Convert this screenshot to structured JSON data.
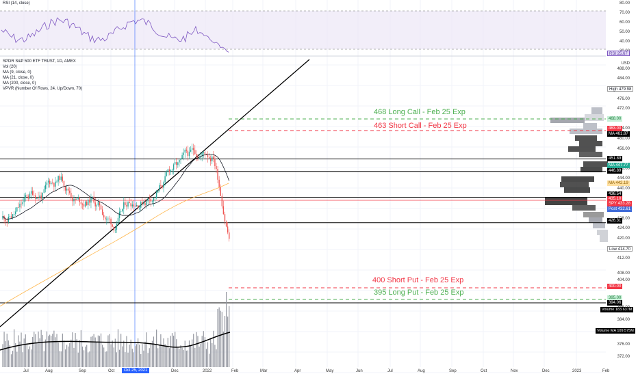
{
  "rsi": {
    "title": "RSI (14, close)",
    "scale": [
      "80.00",
      "70.00",
      "60.00",
      "50.00",
      "40.00",
      "30.00"
    ],
    "tag_label": "RSI",
    "tag_value": "25.67"
  },
  "legend": [
    "SPDR S&P 500 ETF TRUST, 1D, AMEX",
    "Vol (20)",
    "MA (9, close, 0)",
    "MA (21, close, 0)",
    "MA (200, close, 0)",
    "VPVR (Number Of Rows, 24, Up/Down, 70)"
  ],
  "price_scale": {
    "currency": "USD",
    "labels": [
      "488.00",
      "484.00",
      "476.00",
      "472.00",
      "464.00",
      "460.00",
      "456.00",
      "448.00",
      "444.00",
      "440.00",
      "428.00",
      "424.00",
      "420.00",
      "412.00",
      "408.00",
      "404.00",
      "388.00",
      "384.00",
      "380.00",
      "376.00",
      "372.00"
    ],
    "label_values": [
      488,
      484,
      476,
      472,
      464,
      460,
      456,
      448,
      444,
      440,
      428,
      424,
      420,
      412,
      408,
      404,
      388,
      384,
      380,
      376,
      372
    ]
  },
  "price_tags": [
    {
      "label": "High",
      "value": "479.98",
      "style": "white",
      "y": 130
    },
    {
      "label": "",
      "value": "468.00",
      "style": "lightgreen",
      "y": 174
    },
    {
      "label": "",
      "value": "463.00",
      "style": "red",
      "y": 188
    },
    {
      "label": "MA",
      "value": "461.87",
      "style": "dark",
      "y": 196
    },
    {
      "label": "",
      "value": "451.89",
      "style": "dark",
      "y": 232
    },
    {
      "label": "MA",
      "value": "447.77",
      "style": "green",
      "y": 242
    },
    {
      "label": "",
      "value": "446.89",
      "style": "dark",
      "y": 250
    },
    {
      "label": "MA",
      "value": "442.19",
      "style": "orange",
      "y": 268
    },
    {
      "label": "",
      "value": "436.54",
      "style": "dark",
      "y": 284
    },
    {
      "label": "",
      "value": "435.10",
      "style": "red",
      "y": 291
    },
    {
      "label": "SPY",
      "value": "433.28",
      "style": "red",
      "y": 298
    },
    {
      "label": "Post",
      "value": "432.61",
      "style": "bluegrey",
      "y": 306
    },
    {
      "label": "",
      "value": "426.31",
      "style": "dark",
      "y": 323
    },
    {
      "label": "Low",
      "value": "414.70",
      "style": "white",
      "y": 364
    },
    {
      "label": "",
      "value": "400.00",
      "style": "red",
      "y": 419
    },
    {
      "label": "",
      "value": "395.00",
      "style": "lightgreen",
      "y": 436
    },
    {
      "label": "",
      "value": "394.06",
      "style": "dark",
      "y": 443
    }
  ],
  "volume_tags": [
    {
      "label": "Volume",
      "value": "183.637M",
      "y": 453
    },
    {
      "label": "Volume MA",
      "value": "109.575M",
      "y": 484
    }
  ],
  "annotations": [
    {
      "text": "468 Long Call - Feb 25 Exp",
      "color": "#4caf50"
    },
    {
      "text": "463 Short Call - Feb 25 Exp",
      "color": "#f23645"
    },
    {
      "text": "400 Short Put - Feb 25 Exp",
      "color": "#f23645"
    },
    {
      "text": "395 Long Put - Feb 25 Exp",
      "color": "#4caf50"
    }
  ],
  "x_axis": [
    "Jul",
    "Aug",
    "Sep",
    "Oct",
    "Dec",
    "2022",
    "Feb",
    "Mar",
    "Apr",
    "May",
    "Jun",
    "Jul",
    "Aug",
    "Sep",
    "Oct",
    "Nov",
    "Dec",
    "2023",
    "Feb"
  ],
  "x_axis_highlight": "Oct 25, 2021",
  "levels": [
    451.89,
    446.89,
    436.54,
    426.31,
    394.06
  ],
  "colors": {
    "up": "#26a69a",
    "down": "#ef5350",
    "rsi": "#7e57c2",
    "grid": "#f0f3fa"
  }
}
